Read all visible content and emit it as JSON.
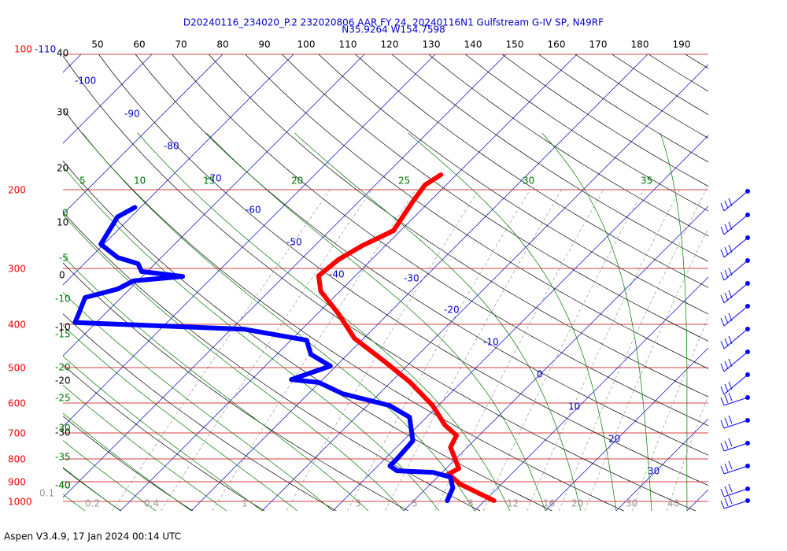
{
  "header": {
    "title": "D20240116_234020_P.2 232020806 AAR FY 24, 20240116N1 Gulfstream G-IV SP, N49RF",
    "location": "N35.9264 W154.7598"
  },
  "footer": "Aspen V3.4.9, 17 Jan 2024  00:14 UTC",
  "pressure_labels": [
    "100",
    "200",
    "300",
    "400",
    "500",
    "600",
    "700",
    "800",
    "900",
    "1000"
  ],
  "top_labels": [
    "50",
    "60",
    "70",
    "80",
    "90",
    "100",
    "110",
    "120",
    "130",
    "140",
    "150",
    "160",
    "170",
    "180",
    "190"
  ],
  "isotherm_labels": [
    "-110",
    "-100",
    "-90",
    "-80",
    "-70",
    "-60",
    "-50",
    "-40",
    "-30",
    "-20",
    "-10",
    "0",
    "10",
    "20",
    "30"
  ],
  "dry_adiabat_labels": [
    "40",
    "30",
    "20",
    "10",
    "0",
    "-10",
    "-20",
    "-30",
    "-40"
  ],
  "moist_left_labels": [
    "0",
    "-5",
    "-10",
    "-15",
    "-20",
    "-25",
    "-30",
    "-35",
    "-40"
  ],
  "moist_top_labels": [
    "5",
    "10",
    "15",
    "20",
    "25",
    "30",
    "35"
  ],
  "mixing_ratio_labels": [
    "0.1",
    "0.2",
    "0.4",
    "1",
    "3",
    "5",
    "8",
    "12",
    "16",
    "20",
    "30",
    "40"
  ],
  "temperature": {
    "color": "#ff0000",
    "pressure": [
      186,
      196,
      213,
      248,
      268,
      288,
      313,
      339,
      380,
      432,
      488,
      540,
      610,
      675,
      712,
      756,
      844,
      868,
      915,
      996
    ],
    "values": [
      -42.2,
      -43,
      -42.4,
      -41,
      -43.3,
      -44.7,
      -45.2,
      -42.7,
      -37.1,
      -31.3,
      -23.6,
      -17.4,
      -10.8,
      -6.3,
      -3.2,
      -2.4,
      1.8,
      1.1,
      4.2,
      11.3
    ]
  },
  "dewpoint": {
    "color": "#0000ff",
    "pressure": [
      220,
      231,
      266,
      285,
      294,
      306,
      314,
      321,
      335,
      350,
      383,
      398,
      412,
      436,
      469,
      498,
      534,
      542,
      574,
      610,
      648,
      732,
      800,
      833,
      854,
      861,
      882,
      933,
      996
    ],
    "values": [
      -80.8,
      -81.9,
      -80.4,
      -76.1,
      -72.4,
      -70.8,
      -64.3,
      -70.6,
      -71.7,
      -75.1,
      -73.6,
      -73,
      -48.2,
      -37.8,
      -35.2,
      -30.8,
      -34.4,
      -30.1,
      -25.2,
      -16.9,
      -12.4,
      -8.6,
      -8.3,
      -8.3,
      -6.6,
      -1.3,
      1.8,
      3.7,
      4.7
    ]
  }
}
